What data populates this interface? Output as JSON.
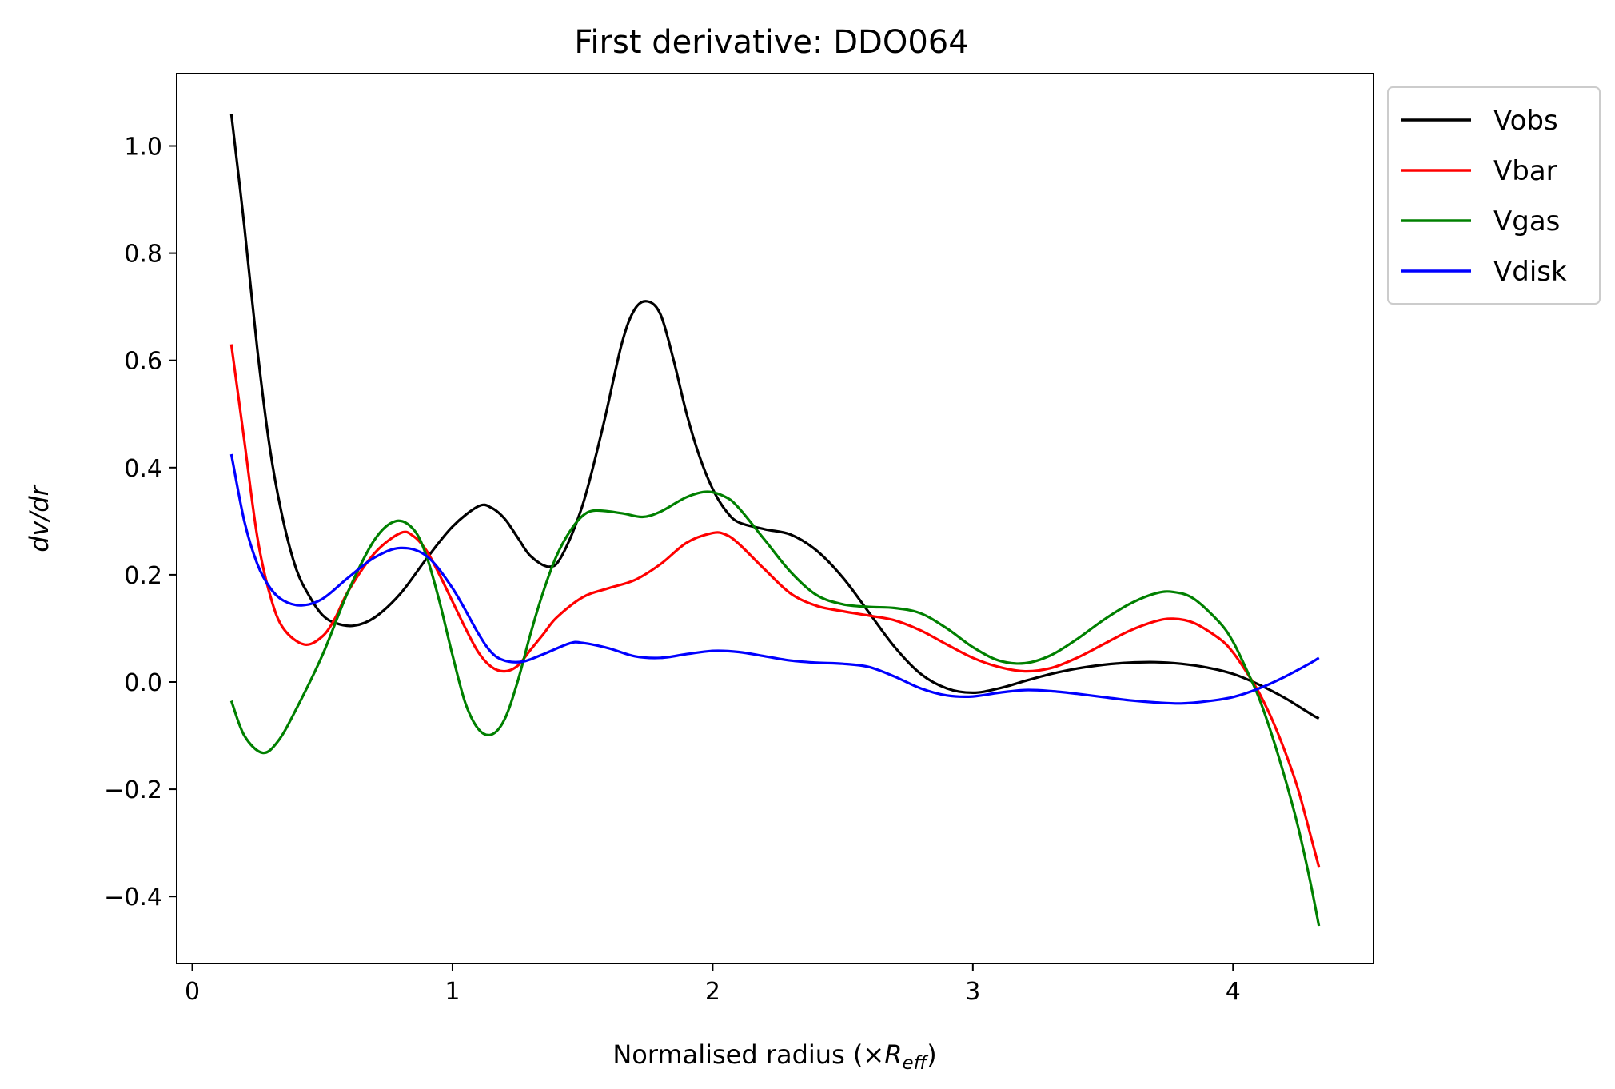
{
  "chart_data": {
    "type": "line",
    "title": "First derivative: DDO064",
    "xlabel": "Normalised radius (×",
    "xlabel_math": "R",
    "xlabel_sub": "eff",
    "xlabel_close": ")",
    "ylabel": "dv/dr",
    "xlim": [
      -0.06,
      4.54
    ],
    "ylim": [
      -0.525,
      1.135
    ],
    "xticks": [
      0,
      1,
      2,
      3,
      4
    ],
    "yticks": [
      -0.4,
      -0.2,
      0.0,
      0.2,
      0.4,
      0.6,
      0.8,
      1.0
    ],
    "ytick_labels": [
      "−0.4",
      "−0.2",
      "0.0",
      "0.2",
      "0.4",
      "0.6",
      "0.8",
      "1.0"
    ],
    "xtick_labels": [
      "0",
      "1",
      "2",
      "3",
      "4"
    ],
    "grid": false,
    "legend_position": "outside-top-right",
    "series": [
      {
        "name": "Vobs",
        "color": "#000000",
        "points": [
          [
            0.15,
            1.06
          ],
          [
            0.2,
            0.85
          ],
          [
            0.25,
            0.62
          ],
          [
            0.3,
            0.43
          ],
          [
            0.35,
            0.3
          ],
          [
            0.4,
            0.21
          ],
          [
            0.45,
            0.16
          ],
          [
            0.5,
            0.125
          ],
          [
            0.55,
            0.11
          ],
          [
            0.62,
            0.105
          ],
          [
            0.7,
            0.12
          ],
          [
            0.8,
            0.165
          ],
          [
            0.9,
            0.23
          ],
          [
            1.0,
            0.29
          ],
          [
            1.1,
            0.328
          ],
          [
            1.15,
            0.325
          ],
          [
            1.2,
            0.305
          ],
          [
            1.25,
            0.27
          ],
          [
            1.3,
            0.235
          ],
          [
            1.37,
            0.215
          ],
          [
            1.42,
            0.235
          ],
          [
            1.5,
            0.33
          ],
          [
            1.58,
            0.48
          ],
          [
            1.65,
            0.63
          ],
          [
            1.7,
            0.695
          ],
          [
            1.75,
            0.71
          ],
          [
            1.8,
            0.685
          ],
          [
            1.85,
            0.6
          ],
          [
            1.9,
            0.5
          ],
          [
            1.95,
            0.42
          ],
          [
            2.0,
            0.36
          ],
          [
            2.05,
            0.32
          ],
          [
            2.1,
            0.298
          ],
          [
            2.2,
            0.285
          ],
          [
            2.3,
            0.275
          ],
          [
            2.4,
            0.245
          ],
          [
            2.5,
            0.195
          ],
          [
            2.6,
            0.13
          ],
          [
            2.7,
            0.065
          ],
          [
            2.8,
            0.015
          ],
          [
            2.9,
            -0.012
          ],
          [
            3.0,
            -0.02
          ],
          [
            3.1,
            -0.012
          ],
          [
            3.2,
            0.002
          ],
          [
            3.3,
            0.015
          ],
          [
            3.4,
            0.025
          ],
          [
            3.5,
            0.032
          ],
          [
            3.6,
            0.036
          ],
          [
            3.7,
            0.037
          ],
          [
            3.8,
            0.034
          ],
          [
            3.9,
            0.027
          ],
          [
            4.0,
            0.015
          ],
          [
            4.1,
            -0.005
          ],
          [
            4.2,
            -0.03
          ],
          [
            4.3,
            -0.06
          ],
          [
            4.33,
            -0.068
          ]
        ]
      },
      {
        "name": "Vbar",
        "color": "#ff0000",
        "points": [
          [
            0.15,
            0.63
          ],
          [
            0.2,
            0.45
          ],
          [
            0.25,
            0.27
          ],
          [
            0.3,
            0.16
          ],
          [
            0.35,
            0.1
          ],
          [
            0.43,
            0.07
          ],
          [
            0.5,
            0.085
          ],
          [
            0.55,
            0.12
          ],
          [
            0.6,
            0.17
          ],
          [
            0.7,
            0.24
          ],
          [
            0.8,
            0.278
          ],
          [
            0.85,
            0.272
          ],
          [
            0.9,
            0.245
          ],
          [
            0.95,
            0.2
          ],
          [
            1.0,
            0.15
          ],
          [
            1.05,
            0.1
          ],
          [
            1.1,
            0.055
          ],
          [
            1.15,
            0.028
          ],
          [
            1.2,
            0.02
          ],
          [
            1.25,
            0.03
          ],
          [
            1.3,
            0.06
          ],
          [
            1.35,
            0.09
          ],
          [
            1.4,
            0.12
          ],
          [
            1.5,
            0.158
          ],
          [
            1.6,
            0.175
          ],
          [
            1.7,
            0.19
          ],
          [
            1.8,
            0.22
          ],
          [
            1.9,
            0.26
          ],
          [
            2.0,
            0.278
          ],
          [
            2.05,
            0.275
          ],
          [
            2.1,
            0.258
          ],
          [
            2.2,
            0.21
          ],
          [
            2.3,
            0.165
          ],
          [
            2.4,
            0.142
          ],
          [
            2.5,
            0.132
          ],
          [
            2.6,
            0.124
          ],
          [
            2.7,
            0.115
          ],
          [
            2.8,
            0.096
          ],
          [
            2.9,
            0.07
          ],
          [
            3.0,
            0.045
          ],
          [
            3.1,
            0.028
          ],
          [
            3.2,
            0.02
          ],
          [
            3.3,
            0.026
          ],
          [
            3.4,
            0.045
          ],
          [
            3.5,
            0.07
          ],
          [
            3.6,
            0.095
          ],
          [
            3.7,
            0.113
          ],
          [
            3.77,
            0.118
          ],
          [
            3.85,
            0.11
          ],
          [
            3.95,
            0.08
          ],
          [
            4.0,
            0.055
          ],
          [
            4.05,
            0.02
          ],
          [
            4.1,
            -0.02
          ],
          [
            4.15,
            -0.07
          ],
          [
            4.2,
            -0.13
          ],
          [
            4.25,
            -0.2
          ],
          [
            4.3,
            -0.29
          ],
          [
            4.33,
            -0.345
          ]
        ]
      },
      {
        "name": "Vgas",
        "color": "#008000",
        "points": [
          [
            0.15,
            -0.035
          ],
          [
            0.2,
            -0.1
          ],
          [
            0.27,
            -0.132
          ],
          [
            0.33,
            -0.11
          ],
          [
            0.4,
            -0.05
          ],
          [
            0.5,
            0.05
          ],
          [
            0.6,
            0.17
          ],
          [
            0.7,
            0.265
          ],
          [
            0.78,
            0.3
          ],
          [
            0.85,
            0.285
          ],
          [
            0.9,
            0.235
          ],
          [
            0.95,
            0.15
          ],
          [
            1.0,
            0.05
          ],
          [
            1.05,
            -0.04
          ],
          [
            1.1,
            -0.088
          ],
          [
            1.15,
            -0.098
          ],
          [
            1.2,
            -0.07
          ],
          [
            1.25,
            0.0
          ],
          [
            1.3,
            0.09
          ],
          [
            1.35,
            0.17
          ],
          [
            1.4,
            0.235
          ],
          [
            1.45,
            0.28
          ],
          [
            1.5,
            0.31
          ],
          [
            1.55,
            0.32
          ],
          [
            1.65,
            0.315
          ],
          [
            1.73,
            0.308
          ],
          [
            1.8,
            0.318
          ],
          [
            1.9,
            0.345
          ],
          [
            1.98,
            0.355
          ],
          [
            2.05,
            0.345
          ],
          [
            2.1,
            0.325
          ],
          [
            2.2,
            0.265
          ],
          [
            2.3,
            0.205
          ],
          [
            2.4,
            0.162
          ],
          [
            2.5,
            0.145
          ],
          [
            2.6,
            0.14
          ],
          [
            2.7,
            0.138
          ],
          [
            2.8,
            0.128
          ],
          [
            2.9,
            0.1
          ],
          [
            3.0,
            0.065
          ],
          [
            3.1,
            0.04
          ],
          [
            3.2,
            0.035
          ],
          [
            3.3,
            0.05
          ],
          [
            3.4,
            0.08
          ],
          [
            3.5,
            0.115
          ],
          [
            3.6,
            0.145
          ],
          [
            3.7,
            0.165
          ],
          [
            3.77,
            0.168
          ],
          [
            3.85,
            0.155
          ],
          [
            3.95,
            0.11
          ],
          [
            4.0,
            0.075
          ],
          [
            4.05,
            0.025
          ],
          [
            4.1,
            -0.03
          ],
          [
            4.15,
            -0.1
          ],
          [
            4.2,
            -0.18
          ],
          [
            4.25,
            -0.27
          ],
          [
            4.3,
            -0.38
          ],
          [
            4.33,
            -0.455
          ]
        ]
      },
      {
        "name": "Vdisk",
        "color": "#0000ff",
        "points": [
          [
            0.15,
            0.425
          ],
          [
            0.2,
            0.3
          ],
          [
            0.25,
            0.22
          ],
          [
            0.3,
            0.175
          ],
          [
            0.35,
            0.152
          ],
          [
            0.42,
            0.143
          ],
          [
            0.5,
            0.155
          ],
          [
            0.6,
            0.195
          ],
          [
            0.7,
            0.232
          ],
          [
            0.8,
            0.25
          ],
          [
            0.9,
            0.235
          ],
          [
            1.0,
            0.175
          ],
          [
            1.1,
            0.09
          ],
          [
            1.15,
            0.055
          ],
          [
            1.2,
            0.04
          ],
          [
            1.27,
            0.038
          ],
          [
            1.35,
            0.052
          ],
          [
            1.45,
            0.072
          ],
          [
            1.5,
            0.073
          ],
          [
            1.6,
            0.063
          ],
          [
            1.7,
            0.048
          ],
          [
            1.8,
            0.045
          ],
          [
            1.9,
            0.052
          ],
          [
            2.0,
            0.058
          ],
          [
            2.1,
            0.056
          ],
          [
            2.2,
            0.048
          ],
          [
            2.3,
            0.04
          ],
          [
            2.4,
            0.036
          ],
          [
            2.5,
            0.034
          ],
          [
            2.6,
            0.028
          ],
          [
            2.7,
            0.01
          ],
          [
            2.8,
            -0.012
          ],
          [
            2.9,
            -0.025
          ],
          [
            3.0,
            -0.027
          ],
          [
            3.1,
            -0.02
          ],
          [
            3.2,
            -0.015
          ],
          [
            3.3,
            -0.017
          ],
          [
            3.4,
            -0.022
          ],
          [
            3.5,
            -0.028
          ],
          [
            3.6,
            -0.034
          ],
          [
            3.7,
            -0.038
          ],
          [
            3.8,
            -0.04
          ],
          [
            3.9,
            -0.036
          ],
          [
            4.0,
            -0.028
          ],
          [
            4.1,
            -0.012
          ],
          [
            4.2,
            0.01
          ],
          [
            4.3,
            0.036
          ],
          [
            4.33,
            0.045
          ]
        ]
      }
    ]
  }
}
